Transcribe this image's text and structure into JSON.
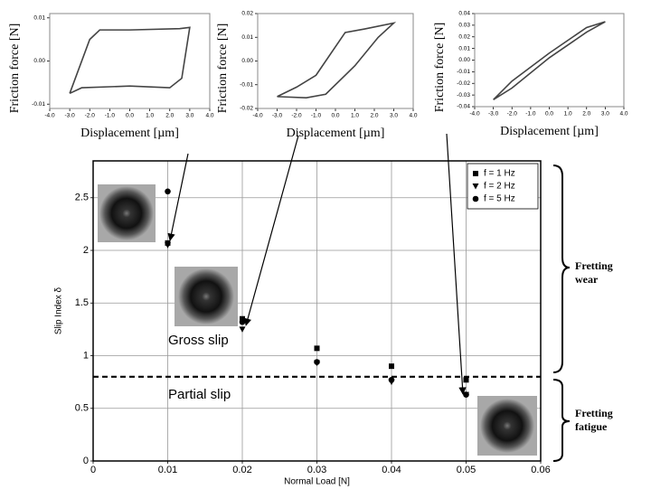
{
  "chart_data": [
    {
      "type": "line",
      "x_label": "Displacement [µm]",
      "y_label": "Friction force [N]",
      "xlim": [
        -4,
        4
      ],
      "ylim": [
        -0.011,
        0.011
      ],
      "xticks": [
        {
          "value": -4,
          "label": "-4.0"
        },
        {
          "value": -3,
          "label": "-3.0"
        },
        {
          "value": -2,
          "label": "-2.0"
        },
        {
          "value": -1,
          "label": "-1.0"
        },
        {
          "value": 0,
          "label": "0.0"
        },
        {
          "value": 1,
          "label": "1.0"
        },
        {
          "value": 2,
          "label": "2.0"
        },
        {
          "value": 3,
          "label": "3.0"
        },
        {
          "value": 4,
          "label": "4.0"
        }
      ],
      "yticks": [
        -0.01,
        {
          "value": 0,
          "label": "0.00"
        },
        0.01
      ],
      "color": "#444444",
      "x": [
        -3,
        -2.4,
        0,
        2,
        2.6,
        3,
        2.5,
        0,
        -1.5,
        -2,
        -3
      ],
      "values": [
        -0.0075,
        -0.0062,
        -0.0058,
        -0.0062,
        -0.004,
        0.0078,
        0.0075,
        0.0072,
        0.0072,
        0.005,
        -0.0075
      ]
    },
    {
      "type": "line",
      "x_label": "Displacement [µm]",
      "y_label": "Friction force [N]",
      "xlim": [
        -4,
        4
      ],
      "ylim": [
        -0.02,
        0.02
      ],
      "xticks": [
        {
          "value": -4,
          "label": "-4.0"
        },
        {
          "value": -3,
          "label": "-3.0"
        },
        {
          "value": -2,
          "label": "-2.0"
        },
        {
          "value": -1,
          "label": "-1.0"
        },
        {
          "value": 0,
          "label": "0.0"
        },
        {
          "value": 1,
          "label": "1.0"
        },
        {
          "value": 2,
          "label": "2.0"
        },
        {
          "value": 3,
          "label": "3.0"
        },
        {
          "value": 4,
          "label": "4.0"
        }
      ],
      "yticks": [
        {
          "value": -0.02,
          "label": "-0.02"
        },
        {
          "value": -0.01,
          "label": "-0.01"
        },
        {
          "value": 0,
          "label": "0.00"
        },
        {
          "value": 0.01,
          "label": "0.01"
        },
        {
          "value": 0.02,
          "label": "0.02"
        }
      ],
      "color": "#444444",
      "x": [
        -3,
        -2,
        -1,
        0.5,
        1.5,
        3,
        2.2,
        1,
        -0.5,
        -1.5,
        -3
      ],
      "values": [
        -0.015,
        -0.011,
        -0.006,
        0.012,
        0.0135,
        0.016,
        0.01,
        -0.002,
        -0.014,
        -0.0155,
        -0.015
      ]
    },
    {
      "type": "line",
      "x_label": "Displacement [µm]",
      "y_label": "Friction force [N]",
      "xlim": [
        -4,
        4
      ],
      "ylim": [
        -0.04,
        0.04
      ],
      "xticks": [
        {
          "value": -4,
          "label": "-4.0"
        },
        {
          "value": -3,
          "label": "-3.0"
        },
        {
          "value": -2,
          "label": "-2.0"
        },
        {
          "value": -1,
          "label": "-1.0"
        },
        {
          "value": 0,
          "label": "0.0"
        },
        {
          "value": 1,
          "label": "1.0"
        },
        {
          "value": 2,
          "label": "2.0"
        },
        {
          "value": 3,
          "label": "3.0"
        },
        {
          "value": 4,
          "label": "4.0"
        }
      ],
      "yticks": [
        -0.04,
        -0.03,
        -0.02,
        -0.01,
        {
          "value": 0,
          "label": "0.00"
        },
        0.01,
        0.02,
        0.03,
        0.04
      ],
      "color": "#444444",
      "x": [
        -3,
        -2,
        0,
        2,
        3,
        2,
        0,
        -2,
        -3
      ],
      "values": [
        -0.034,
        -0.024,
        0.002,
        0.024,
        0.033,
        0.028,
        0.006,
        -0.018,
        -0.034
      ]
    },
    {
      "type": "scatter",
      "x_label": "Normal Load [N]",
      "y_label": "Slip Index δ",
      "xlim": [
        0,
        0.06
      ],
      "ylim": [
        0,
        2.85
      ],
      "xticks": [
        0,
        0.01,
        0.02,
        0.03,
        0.04,
        0.05,
        0.06
      ],
      "yticks": [
        0,
        0.5,
        1,
        1.5,
        2,
        2.5
      ],
      "grid": true,
      "legend": "upper right",
      "threshold": 0.8,
      "annotations": [
        "Gross slip",
        "Partial slip",
        "Fretting wear",
        "Fretting fatigue"
      ],
      "x": [
        0.01,
        0.02,
        0.03,
        0.04,
        0.05
      ],
      "series": [
        {
          "name": "f = 1 Hz",
          "marker": "square",
          "color": "#000000",
          "values": [
            2.07,
            1.35,
            1.07,
            0.9,
            0.77
          ]
        },
        {
          "name": "f = 2 Hz",
          "marker": "triangle",
          "color": "#000000",
          "values": [
            2.05,
            1.25,
            0.93,
            0.75,
            0.63
          ]
        },
        {
          "name": "f = 5 Hz",
          "marker": "circle",
          "color": "#000000",
          "values": [
            2.56,
            1.32,
            0.94,
            0.77,
            0.63
          ]
        }
      ]
    }
  ]
}
